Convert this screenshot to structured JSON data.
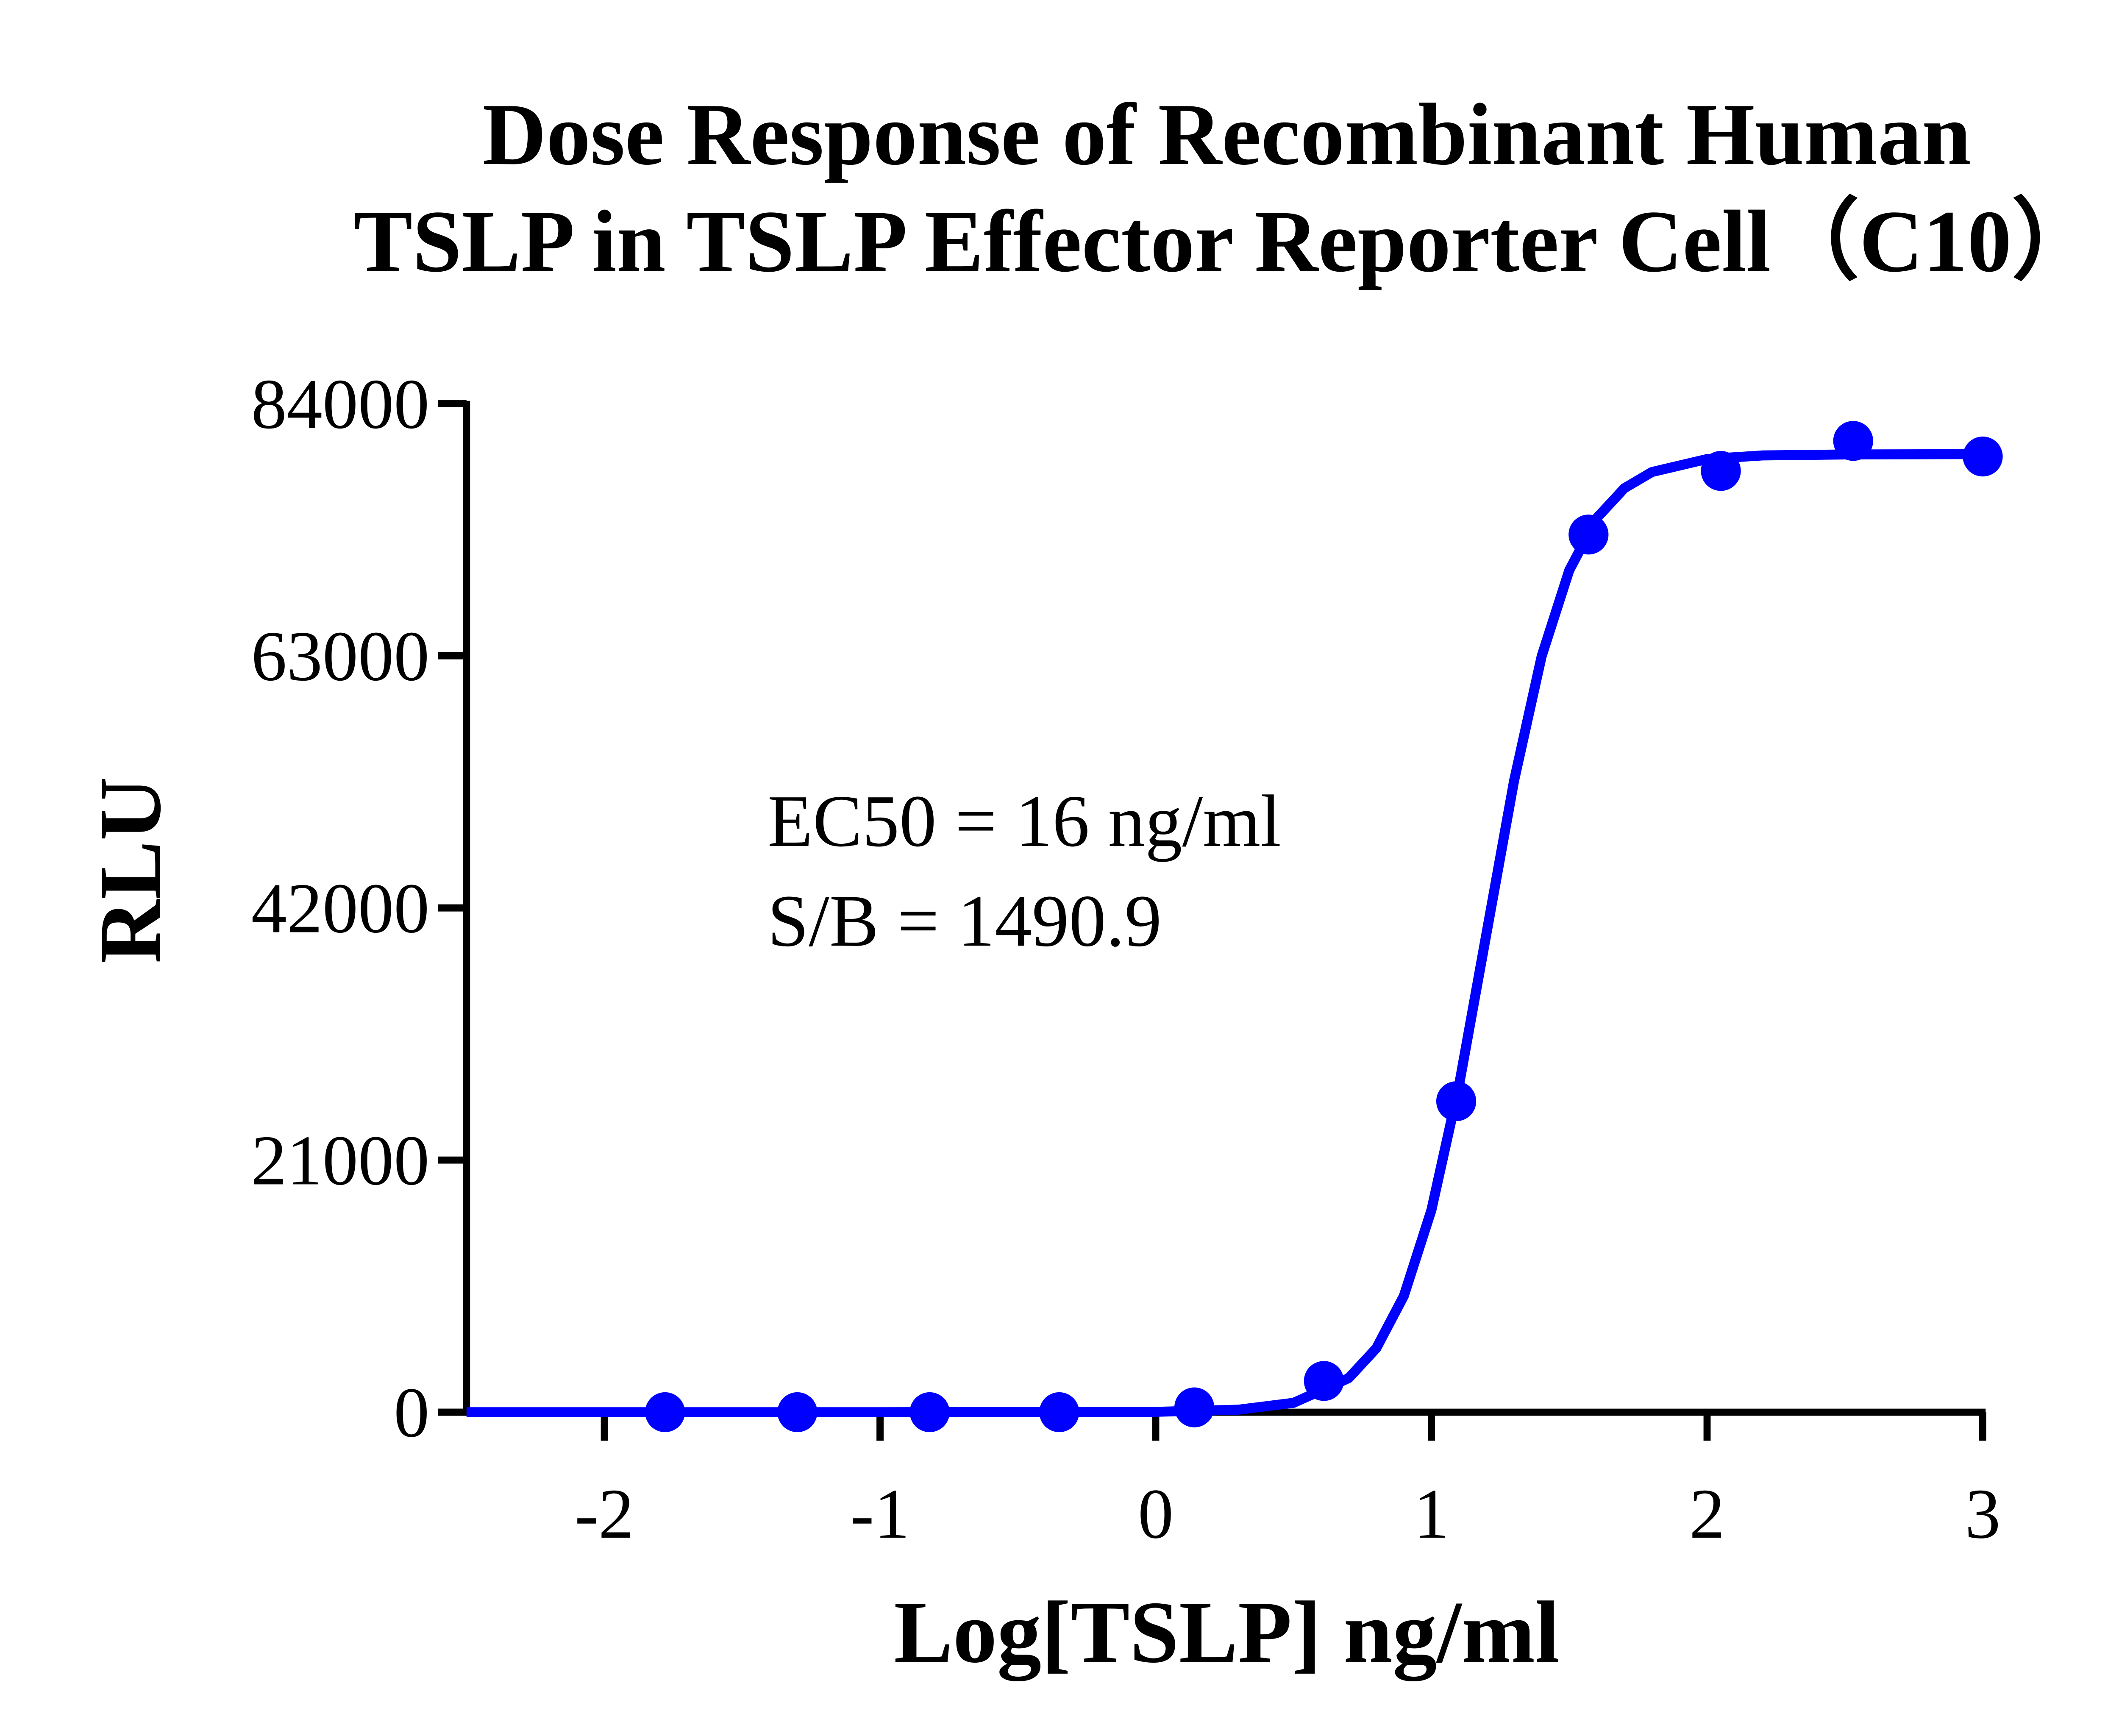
{
  "chart_data": {
    "type": "scatter",
    "title": [
      "Dose Response of Recombinant Human",
      "TSLP in TSLP Effector Reporter Cell（C10）"
    ],
    "x_label": "Log[TSLP] ng/ml",
    "y_label": "RLU",
    "annotations": [
      "EC50 = 16 ng/ml",
      "S/B  = 1490.9"
    ],
    "xlim": [
      -2.5,
      3
    ],
    "xticks": [
      -2,
      -1,
      0,
      1,
      2,
      3
    ],
    "ylim": [
      0,
      84000
    ],
    "yticks": [
      0,
      21000,
      42000,
      63000,
      84000
    ],
    "series": [
      {
        "type": "scatter",
        "color": "#0000ff",
        "x": [
          -1.78,
          -1.3,
          -0.82,
          -0.35,
          0.14,
          0.61,
          1.09,
          1.57,
          2.05,
          2.53,
          3.0
        ],
        "values": [
          0,
          0,
          0,
          0,
          400,
          2600,
          25900,
          73100,
          78400,
          80900,
          79600
        ]
      },
      {
        "type": "line",
        "color": "#0000ff",
        "x": [
          -2.5,
          -1,
          0,
          0.3,
          0.5,
          0.7,
          0.8,
          0.9,
          1.0,
          1.1,
          1.2,
          1.3,
          1.4,
          1.5,
          1.6,
          1.7,
          1.8,
          2.0,
          2.2,
          2.5,
          3.0
        ],
        "values": [
          0,
          0,
          30,
          210,
          780,
          2840,
          5320,
          9680,
          16830,
          27190,
          39900,
          52610,
          62970,
          70120,
          74480,
          76960,
          78310,
          79390,
          79690,
          79770,
          79800
        ]
      }
    ]
  }
}
